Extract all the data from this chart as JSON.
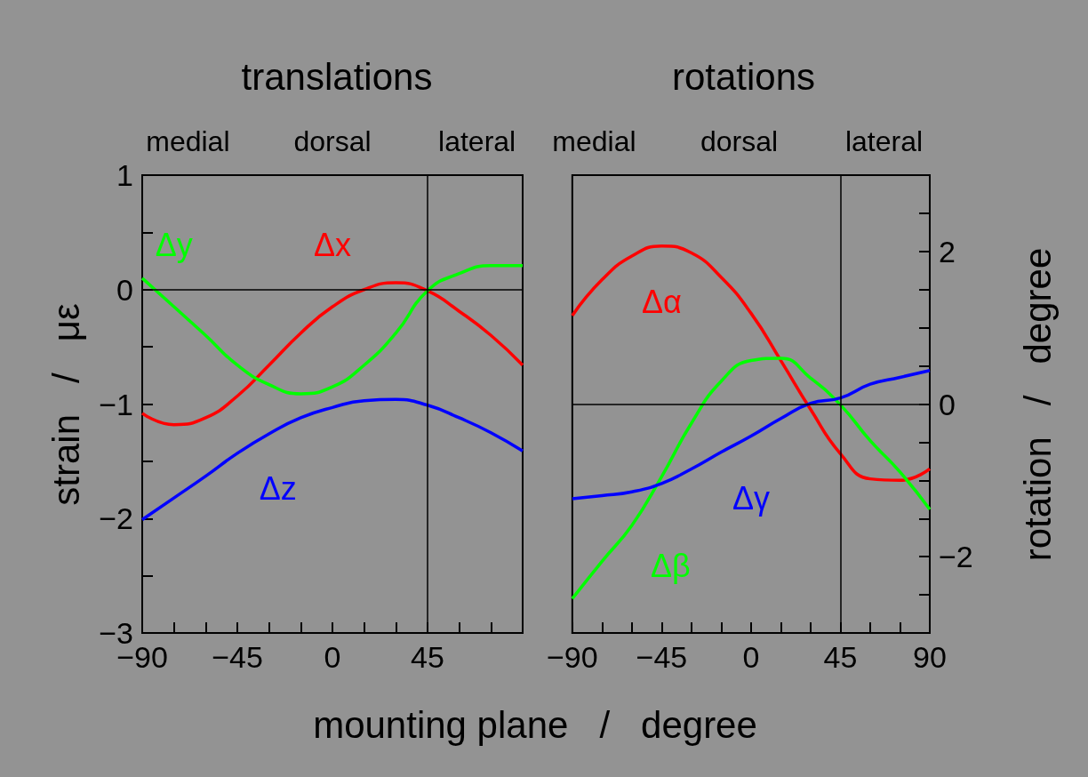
{
  "chart_data": [
    {
      "type": "line",
      "title": "translations",
      "xlabel": "mounting plane   /   degree",
      "ylabel": "strain   /   με",
      "x": [
        -90,
        -75,
        -60,
        -45,
        -30,
        -15,
        0,
        15,
        30,
        45,
        60,
        75,
        90
      ],
      "series": [
        {
          "name": "Δx",
          "color": "#ff0000",
          "values": [
            -1.08,
            -1.18,
            -1.12,
            -0.93,
            -0.66,
            -0.38,
            -0.15,
            0.0,
            0.06,
            -0.01,
            -0.19,
            -0.4,
            -0.66
          ]
        },
        {
          "name": "Δy",
          "color": "#00ff00",
          "values": [
            0.1,
            -0.15,
            -0.4,
            -0.66,
            -0.83,
            -0.91,
            -0.85,
            -0.66,
            -0.38,
            -0.01,
            0.14,
            0.21,
            0.21
          ]
        },
        {
          "name": "Δz",
          "color": "#0000ff",
          "values": [
            -2.01,
            -1.82,
            -1.63,
            -1.43,
            -1.26,
            -1.12,
            -1.03,
            -0.97,
            -0.96,
            -1.01,
            -1.12,
            -1.25,
            -1.41
          ]
        }
      ],
      "xlim": [
        -90,
        90
      ],
      "xticks": [
        -90,
        {
          "value": -75,
          "label": null
        },
        {
          "value": -60,
          "label": null
        },
        -45,
        {
          "value": -30,
          "label": null
        },
        {
          "value": -15,
          "label": null
        },
        0,
        {
          "value": 15,
          "label": null
        },
        {
          "value": 30,
          "label": null
        },
        45,
        {
          "value": 60,
          "label": null
        },
        {
          "value": 75,
          "label": null
        },
        {
          "value": 90,
          "label": null
        }
      ],
      "ylim": [
        -3,
        1
      ],
      "yticks": [
        -3,
        {
          "value": -2.5,
          "label": null
        },
        -2,
        {
          "value": -1.5,
          "label": null
        },
        -1,
        {
          "value": -0.5,
          "label": null
        },
        0,
        {
          "value": 0.5,
          "label": null
        },
        1
      ],
      "annotations": [
        "medial",
        "dorsal",
        "lateral"
      ],
      "ref_lines": [
        {
          "axis": "y",
          "value": 0,
          "color": "#000000"
        },
        {
          "axis": "x",
          "value": 45,
          "color": "#000000"
        }
      ],
      "legend": false
    },
    {
      "type": "line",
      "title": "rotations",
      "y2label": "rotation   /   degree",
      "x": [
        -90,
        -75,
        -60,
        -45,
        -30,
        -15,
        0,
        15,
        30,
        45,
        60,
        75,
        90
      ],
      "series": [
        {
          "name": "Δα",
          "color": "#ff0000",
          "axis": "y2",
          "values": [
            1.16,
            1.63,
            1.94,
            2.07,
            1.98,
            1.66,
            1.19,
            0.57,
            -0.07,
            -0.65,
            -0.98,
            -1.0,
            -0.85
          ]
        },
        {
          "name": "Δβ",
          "color": "#00ff00",
          "axis": "y2",
          "values": [
            -2.55,
            -2.06,
            -1.59,
            -0.95,
            -0.25,
            0.3,
            0.57,
            0.6,
            0.34,
            -0.01,
            -0.48,
            -0.89,
            -1.38
          ]
        },
        {
          "name": "Δγ",
          "color": "#0000ff",
          "axis": "y2",
          "values": [
            -1.24,
            -1.2,
            -1.15,
            -1.04,
            -0.85,
            -0.63,
            -0.42,
            -0.19,
            0.01,
            0.08,
            0.26,
            0.35,
            0.44
          ]
        }
      ],
      "xlim": [
        -90,
        90
      ],
      "xticks": [
        -90,
        {
          "value": -75,
          "label": null
        },
        {
          "value": -60,
          "label": null
        },
        -45,
        {
          "value": -30,
          "label": null
        },
        {
          "value": -15,
          "label": null
        },
        0,
        {
          "value": 15,
          "label": null
        },
        {
          "value": 30,
          "label": null
        },
        45,
        {
          "value": 60,
          "label": null
        },
        {
          "value": 75,
          "label": null
        },
        90
      ],
      "y2lim": [
        -3,
        3
      ],
      "y2ticks": [
        {
          "value": -3,
          "label": null
        },
        {
          "value": -2.5,
          "label": null
        },
        -2,
        {
          "value": -1.5,
          "label": null
        },
        {
          "value": -1,
          "label": null
        },
        {
          "value": -0.5,
          "label": null
        },
        0,
        {
          "value": 0.5,
          "label": null
        },
        {
          "value": 1,
          "label": null
        },
        {
          "value": 1.5,
          "label": null
        },
        2,
        {
          "value": 2.5,
          "label": null
        },
        {
          "value": 3,
          "label": null
        }
      ],
      "annotations": [
        "medial",
        "dorsal",
        "lateral"
      ],
      "ref_lines": [
        {
          "axis": "y2",
          "value": 0,
          "color": "#000000"
        },
        {
          "axis": "x",
          "value": 45,
          "color": "#000000"
        }
      ],
      "legend": false
    }
  ]
}
